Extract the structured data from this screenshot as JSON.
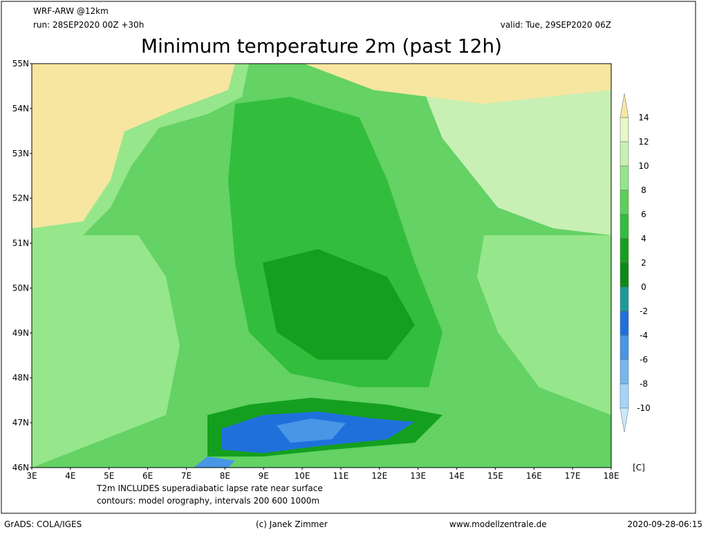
{
  "header": {
    "model": "WRF-ARW @12km",
    "run": "run: 28SEP2020 00Z +30h",
    "valid": "valid: Tue, 29SEP2020 06Z",
    "title": "Minimum temperature 2m (past 12h)"
  },
  "map": {
    "lat_labels": [
      "55N",
      "54N",
      "53N",
      "52N",
      "51N",
      "50N",
      "49N",
      "48N",
      "47N",
      "46N"
    ],
    "lon_labels": [
      "3E",
      "4E",
      "5E",
      "6E",
      "7E",
      "8E",
      "9E",
      "10E",
      "11E",
      "12E",
      "13E",
      "14E",
      "15E",
      "16E",
      "17E",
      "18E"
    ]
  },
  "colorbar": {
    "ticks": [
      14,
      12,
      10,
      8,
      6,
      4,
      2,
      0,
      -2,
      -4,
      -6,
      -8,
      -10
    ],
    "colors": [
      "#f6e6a0",
      "#e8f6c8",
      "#c8f0b4",
      "#96e68c",
      "#5ad25a",
      "#32be3c",
      "#14a01e",
      "#0a8a14",
      "#1e9a96",
      "#2070dc",
      "#4896e6",
      "#78b6f0",
      "#a4d4fa",
      "#c8e8ff"
    ],
    "unit": "[C]"
  },
  "notes": {
    "line1": "T2m INCLUDES superadiabatic lapse rate near surface",
    "line2": "contours: model orography, intervals 200 600 1000m"
  },
  "footer": {
    "software": "GrADS: COLA/IGES",
    "copyright": "(c) Janek Zimmer",
    "website": "www.modellzentrale.de",
    "timestamp": "2020-09-28-06:15"
  }
}
